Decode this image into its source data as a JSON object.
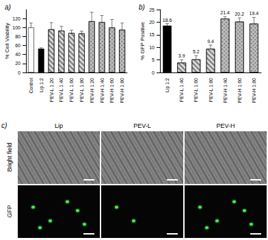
{
  "chart_data": [
    {
      "type": "bar",
      "title": "a)",
      "y_label": "% Cell Viability",
      "categories": [
        "Control",
        "Lip 1:2",
        "PEV-L 1:20",
        "PEV-L 1:40",
        "PEV-L 1:60",
        "PEV-L 1:80",
        "PEV-H 1:20",
        "PEV-H 1:40",
        "PEV-H 1:60",
        "PEV-H 1:80"
      ],
      "values": [
        100,
        53,
        96,
        93,
        88,
        87,
        114,
        112,
        100,
        95
      ],
      "errors": [
        10,
        2,
        15,
        10,
        6,
        5,
        20,
        15,
        18,
        15
      ],
      "colors": [
        "#ffffff",
        "#000000",
        "#d9d9d9",
        "#d9d9d9",
        "#d9d9d9",
        "#d9d9d9",
        "#bdbdbd",
        "#bdbdbd",
        "#bdbdbd",
        "#bdbdbd"
      ],
      "ylim": [
        0,
        140
      ],
      "yticks": [
        0,
        20,
        40,
        60,
        80,
        100,
        120
      ],
      "grid": false,
      "data_labels": false
    },
    {
      "type": "bar",
      "title": "b)",
      "y_label": "% GFP Positive",
      "categories": [
        "Lip 1:2",
        "PEV-L 1:40",
        "PEV-L 1:60",
        "PEV-L 1:80",
        "PEV-H 1:40",
        "PEV-H 1:60",
        "PEV-H 1:80"
      ],
      "values": [
        18.6,
        3.9,
        5.2,
        9.4,
        21.4,
        20.2,
        19.4
      ],
      "errors": [
        0.8,
        1.2,
        1.5,
        1.5,
        0.8,
        1.5,
        2.5
      ],
      "colors": [
        "#000000",
        "#d9d9d9",
        "#d9d9d9",
        "#d9d9d9",
        "#bdbdbd",
        "#bdbdbd",
        "#bdbdbd"
      ],
      "ylim": [
        0,
        25
      ],
      "yticks": [
        0,
        5,
        10,
        15,
        20,
        25
      ],
      "grid": false,
      "data_labels": true
    }
  ],
  "panel_c": {
    "label": "c)",
    "columns": [
      "Lip",
      "PEV-L",
      "PEV-H"
    ],
    "rows": [
      "Bright field",
      "GFP"
    ]
  }
}
